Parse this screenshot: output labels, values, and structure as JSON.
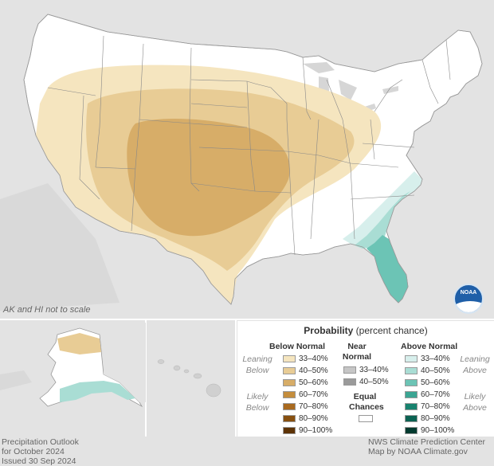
{
  "map": {
    "note": "AK and HI not to scale",
    "colors": {
      "land": "#ffffff",
      "neighbor": "#e3e3e3",
      "water": "#d6d6d6",
      "border": "#888888",
      "below_33_40": "#f5e5bf",
      "below_40_50": "#e8cc95",
      "below_50_60": "#d7ad68",
      "above_33_40": "#d7efec",
      "above_40_50": "#a9ddd4",
      "above_50_60": "#6cc4b5"
    }
  },
  "legend": {
    "title_bold": "Probability",
    "title_rest": "(percent chance)",
    "below_header": "Below Normal",
    "near_header_1": "Near",
    "near_header_2": "Normal",
    "above_header": "Above Normal",
    "leaning_below_1": "Leaning",
    "leaning_below_2": "Below",
    "likely_below_1": "Likely",
    "likely_below_2": "Below",
    "leaning_above_1": "Leaning",
    "leaning_above_2": "Above",
    "likely_above_1": "Likely",
    "likely_above_2": "Above",
    "equal_1": "Equal",
    "equal_2": "Chances",
    "below": [
      {
        "label": "33–40%",
        "color": "#f5e5bf"
      },
      {
        "label": "40–50%",
        "color": "#e8cc95"
      },
      {
        "label": "50–60%",
        "color": "#d7ad68"
      },
      {
        "label": "60–70%",
        "color": "#c48d3c"
      },
      {
        "label": "70–80%",
        "color": "#a96a1f"
      },
      {
        "label": "80–90%",
        "color": "#875010"
      },
      {
        "label": "90–100%",
        "color": "#5d3306"
      }
    ],
    "near": [
      {
        "label": "33–40%",
        "color": "#c6c6c6"
      },
      {
        "label": "40–50%",
        "color": "#9a9a9a"
      }
    ],
    "equal_color": "#ffffff",
    "above": [
      {
        "label": "33–40%",
        "color": "#d7efec"
      },
      {
        "label": "40–50%",
        "color": "#a9ddd4"
      },
      {
        "label": "50–60%",
        "color": "#6cc4b5"
      },
      {
        "label": "60–70%",
        "color": "#3ba593"
      },
      {
        "label": "70–80%",
        "color": "#18836f"
      },
      {
        "label": "80–90%",
        "color": "#0b6252"
      },
      {
        "label": "90–100%",
        "color": "#033b30"
      }
    ]
  },
  "footer": {
    "line1": "Precipitation Outlook",
    "line2": "for October 2024",
    "line3": "Issued 30 Sep 2024",
    "credit1": "NWS Climate Prediction Center",
    "credit2": "Map by NOAA Climate.gov"
  },
  "logo": {
    "text": "NOAA"
  }
}
